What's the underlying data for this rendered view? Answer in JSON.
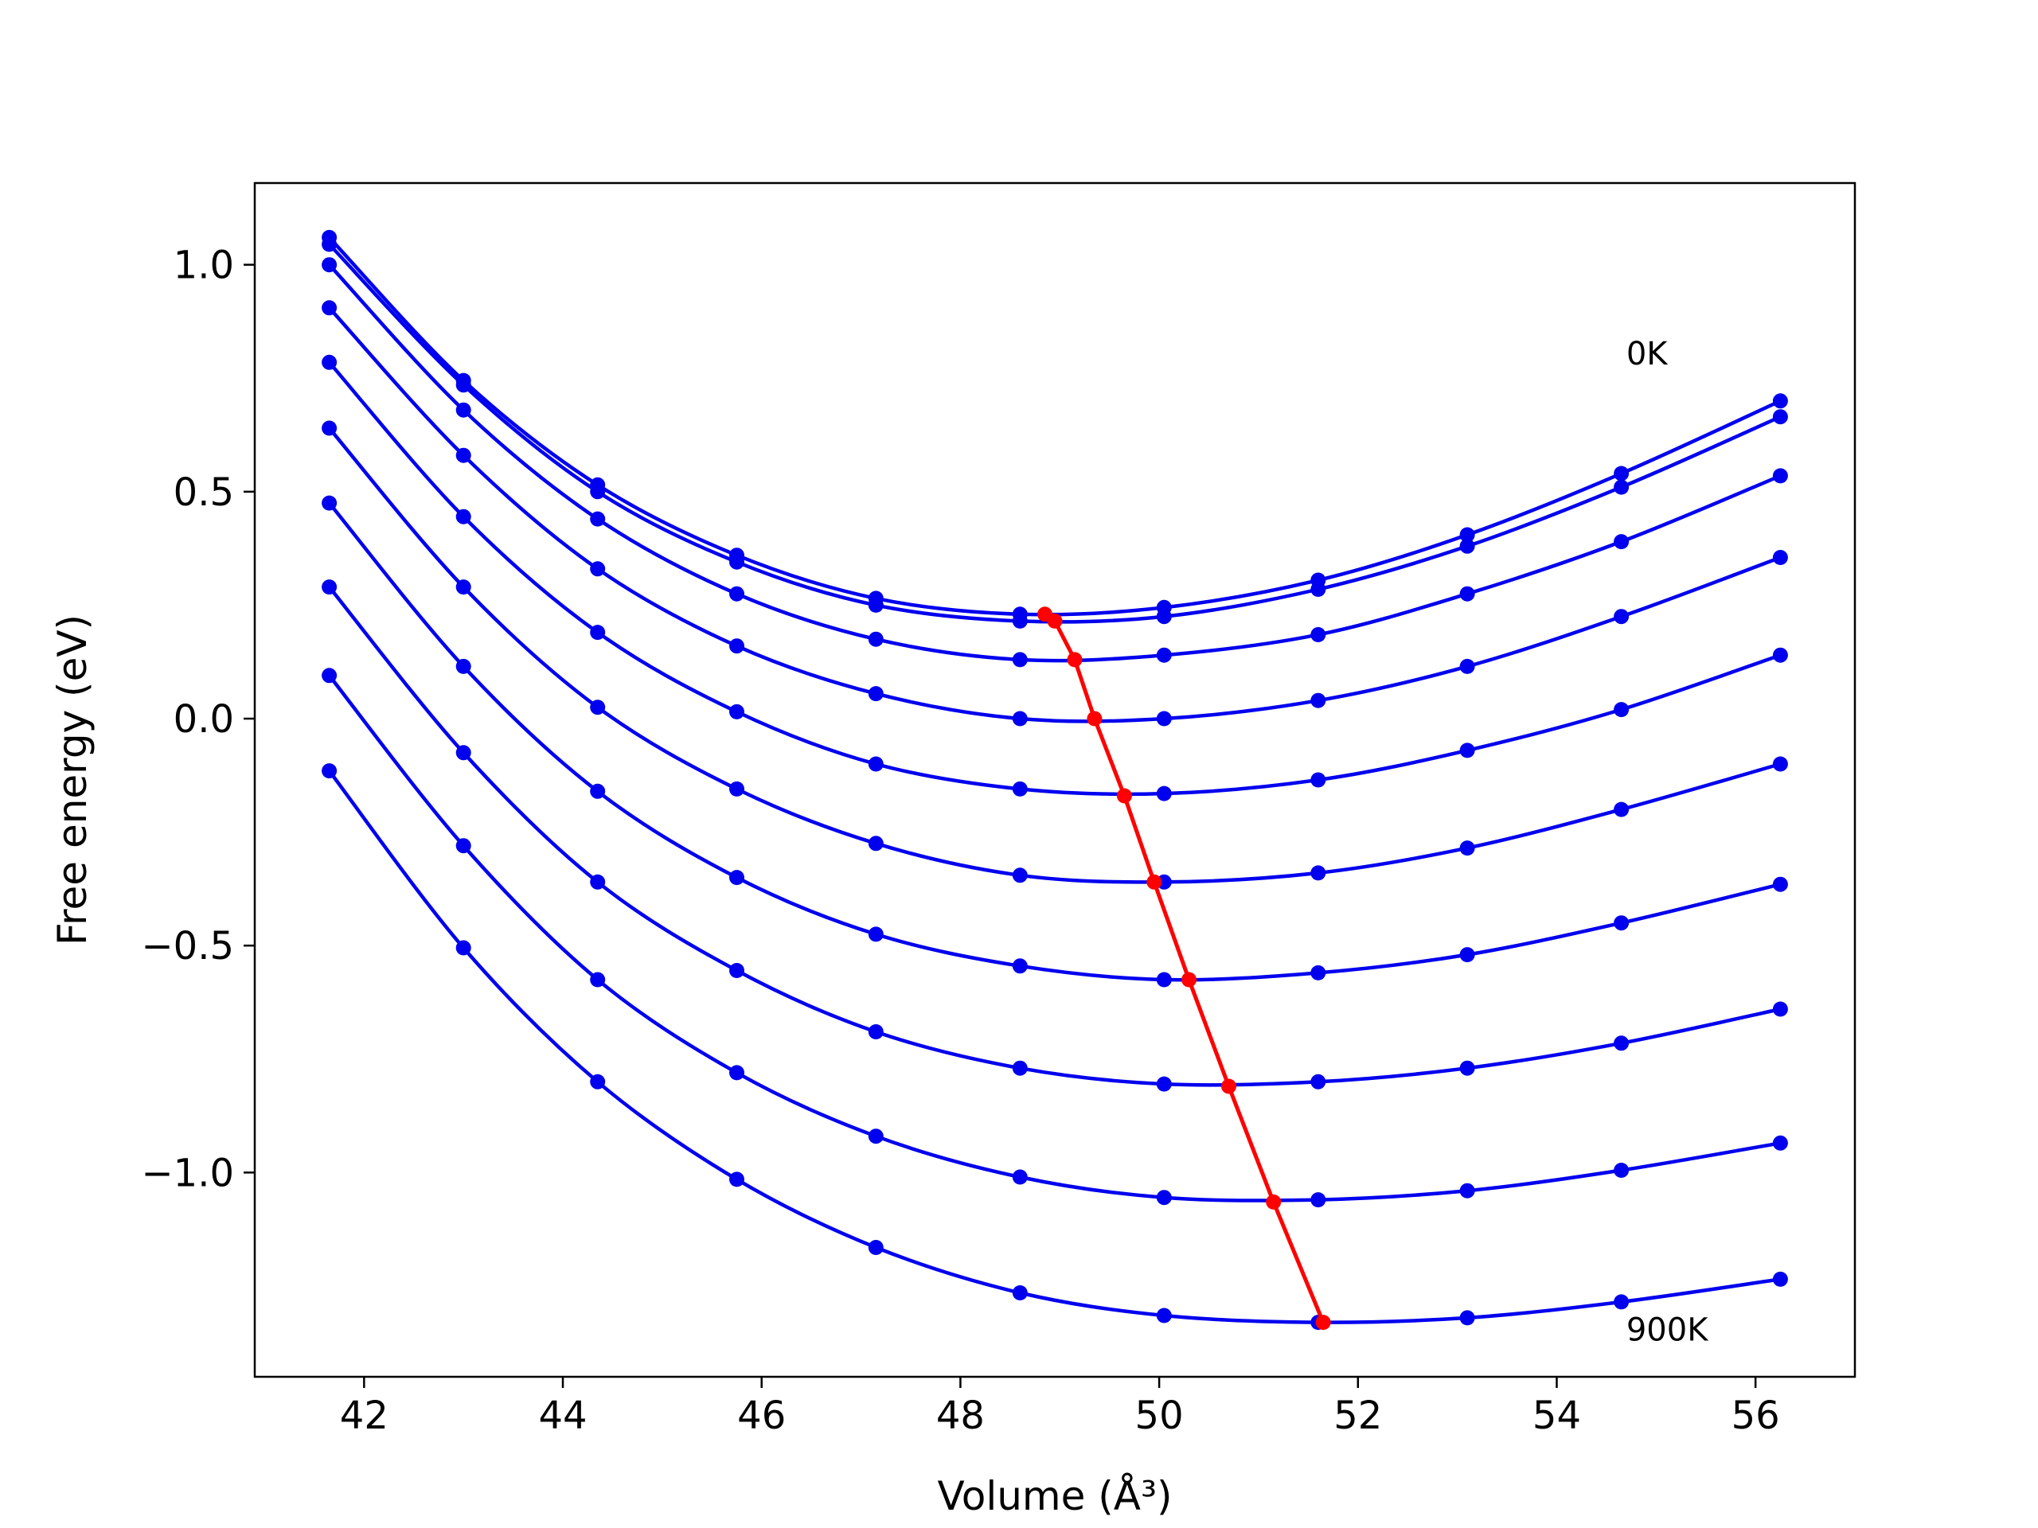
{
  "chart_data": {
    "type": "line",
    "title": "",
    "xlabel": "Volume (Å³)",
    "ylabel": "Free energy (eV)",
    "xlim": [
      40.9,
      57.0
    ],
    "ylim": [
      -1.45,
      1.18
    ],
    "grid": false,
    "x_ticks": [
      42,
      44,
      46,
      48,
      50,
      52,
      54,
      56
    ],
    "x_tick_labels": [
      "42",
      "44",
      "46",
      "48",
      "50",
      "52",
      "54",
      "56"
    ],
    "y_ticks": [
      1.0,
      0.5,
      0.0,
      -0.5,
      -1.0
    ],
    "y_tick_labels": [
      "1.0",
      "0.5",
      "0.0",
      "−0.5",
      "−1.0"
    ],
    "annotations": [
      {
        "text": "0K",
        "x": 54.7,
        "y": 0.78
      },
      {
        "text": "900K",
        "x": 54.7,
        "y": -1.37
      }
    ],
    "x": [
      41.65,
      43.0,
      44.35,
      45.75,
      47.15,
      48.6,
      50.05,
      51.6,
      53.1,
      54.65,
      56.25
    ],
    "series": [
      {
        "values": [
          1.06,
          0.745,
          0.515,
          0.36,
          0.265,
          0.23,
          0.245,
          0.305,
          0.405,
          0.54,
          0.7
        ]
      },
      {
        "values": [
          1.045,
          0.735,
          0.5,
          0.345,
          0.25,
          0.215,
          0.225,
          0.285,
          0.38,
          0.51,
          0.665
        ]
      },
      {
        "values": [
          1.0,
          0.68,
          0.44,
          0.275,
          0.175,
          0.13,
          0.14,
          0.185,
          0.275,
          0.39,
          0.535
        ]
      },
      {
        "values": [
          0.905,
          0.58,
          0.33,
          0.16,
          0.055,
          0.0,
          0.0,
          0.04,
          0.115,
          0.225,
          0.355
        ]
      },
      {
        "values": [
          0.785,
          0.445,
          0.19,
          0.015,
          -0.1,
          -0.155,
          -0.165,
          -0.135,
          -0.07,
          0.02,
          0.14
        ]
      },
      {
        "values": [
          0.64,
          0.29,
          0.025,
          -0.155,
          -0.275,
          -0.345,
          -0.36,
          -0.34,
          -0.285,
          -0.2,
          -0.1
        ]
      },
      {
        "values": [
          0.475,
          0.115,
          -0.16,
          -0.35,
          -0.475,
          -0.545,
          -0.575,
          -0.56,
          -0.52,
          -0.45,
          -0.365
        ]
      },
      {
        "values": [
          0.29,
          -0.075,
          -0.36,
          -0.555,
          -0.69,
          -0.77,
          -0.805,
          -0.8,
          -0.77,
          -0.715,
          -0.64
        ]
      },
      {
        "values": [
          0.095,
          -0.28,
          -0.575,
          -0.78,
          -0.92,
          -1.01,
          -1.055,
          -1.06,
          -1.04,
          -0.995,
          -0.935
        ]
      },
      {
        "values": [
          -0.115,
          -0.505,
          -0.8,
          -1.015,
          -1.165,
          -1.265,
          -1.315,
          -1.33,
          -1.32,
          -1.285,
          -1.235
        ]
      }
    ],
    "minima": {
      "x": [
        48.85,
        48.95,
        49.15,
        49.35,
        49.65,
        49.95,
        50.3,
        50.7,
        51.15,
        51.65
      ],
      "y": [
        0.23,
        0.215,
        0.13,
        0.0,
        -0.17,
        -0.36,
        -0.575,
        -0.81,
        -1.065,
        -1.33
      ]
    },
    "colors": {
      "series": "#0000ee",
      "minima": "#ff0000"
    }
  }
}
